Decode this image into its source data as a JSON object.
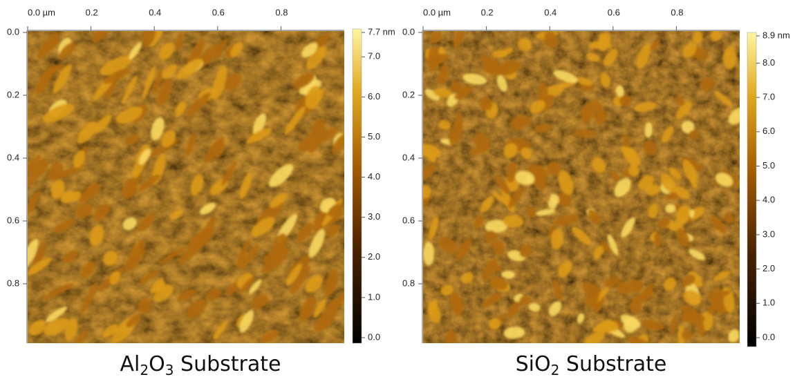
{
  "panels": [
    {
      "x_ticks": [
        "0.0 µm",
        "0.2",
        "0.4",
        "0.6",
        "0.8"
      ],
      "y_ticks": [
        "0.0",
        "0.2",
        "0.4",
        "0.6",
        "0.8"
      ],
      "colorbar_ticks": [
        "7.7 nm",
        "7.0",
        "6.0",
        "5.0",
        "4.0",
        "3.0",
        "2.0",
        "1.0",
        "0.0"
      ],
      "caption": {
        "parts": [
          "Al",
          "2",
          "O",
          "3",
          " Substrate"
        ]
      }
    },
    {
      "x_ticks": [
        "0.0 µm",
        "0.2",
        "0.4",
        "0.6",
        "0.8"
      ],
      "y_ticks": [
        "0.0",
        "0.2",
        "0.4",
        "0.6",
        "0.8"
      ],
      "colorbar_ticks": [
        "8.9 nm",
        "8.0",
        "7.0",
        "6.0",
        "5.0",
        "4.0",
        "3.0",
        "2.0",
        "1.0",
        "0.0"
      ],
      "caption": {
        "parts": [
          "SiO",
          "2",
          " Substrate"
        ]
      }
    }
  ]
}
